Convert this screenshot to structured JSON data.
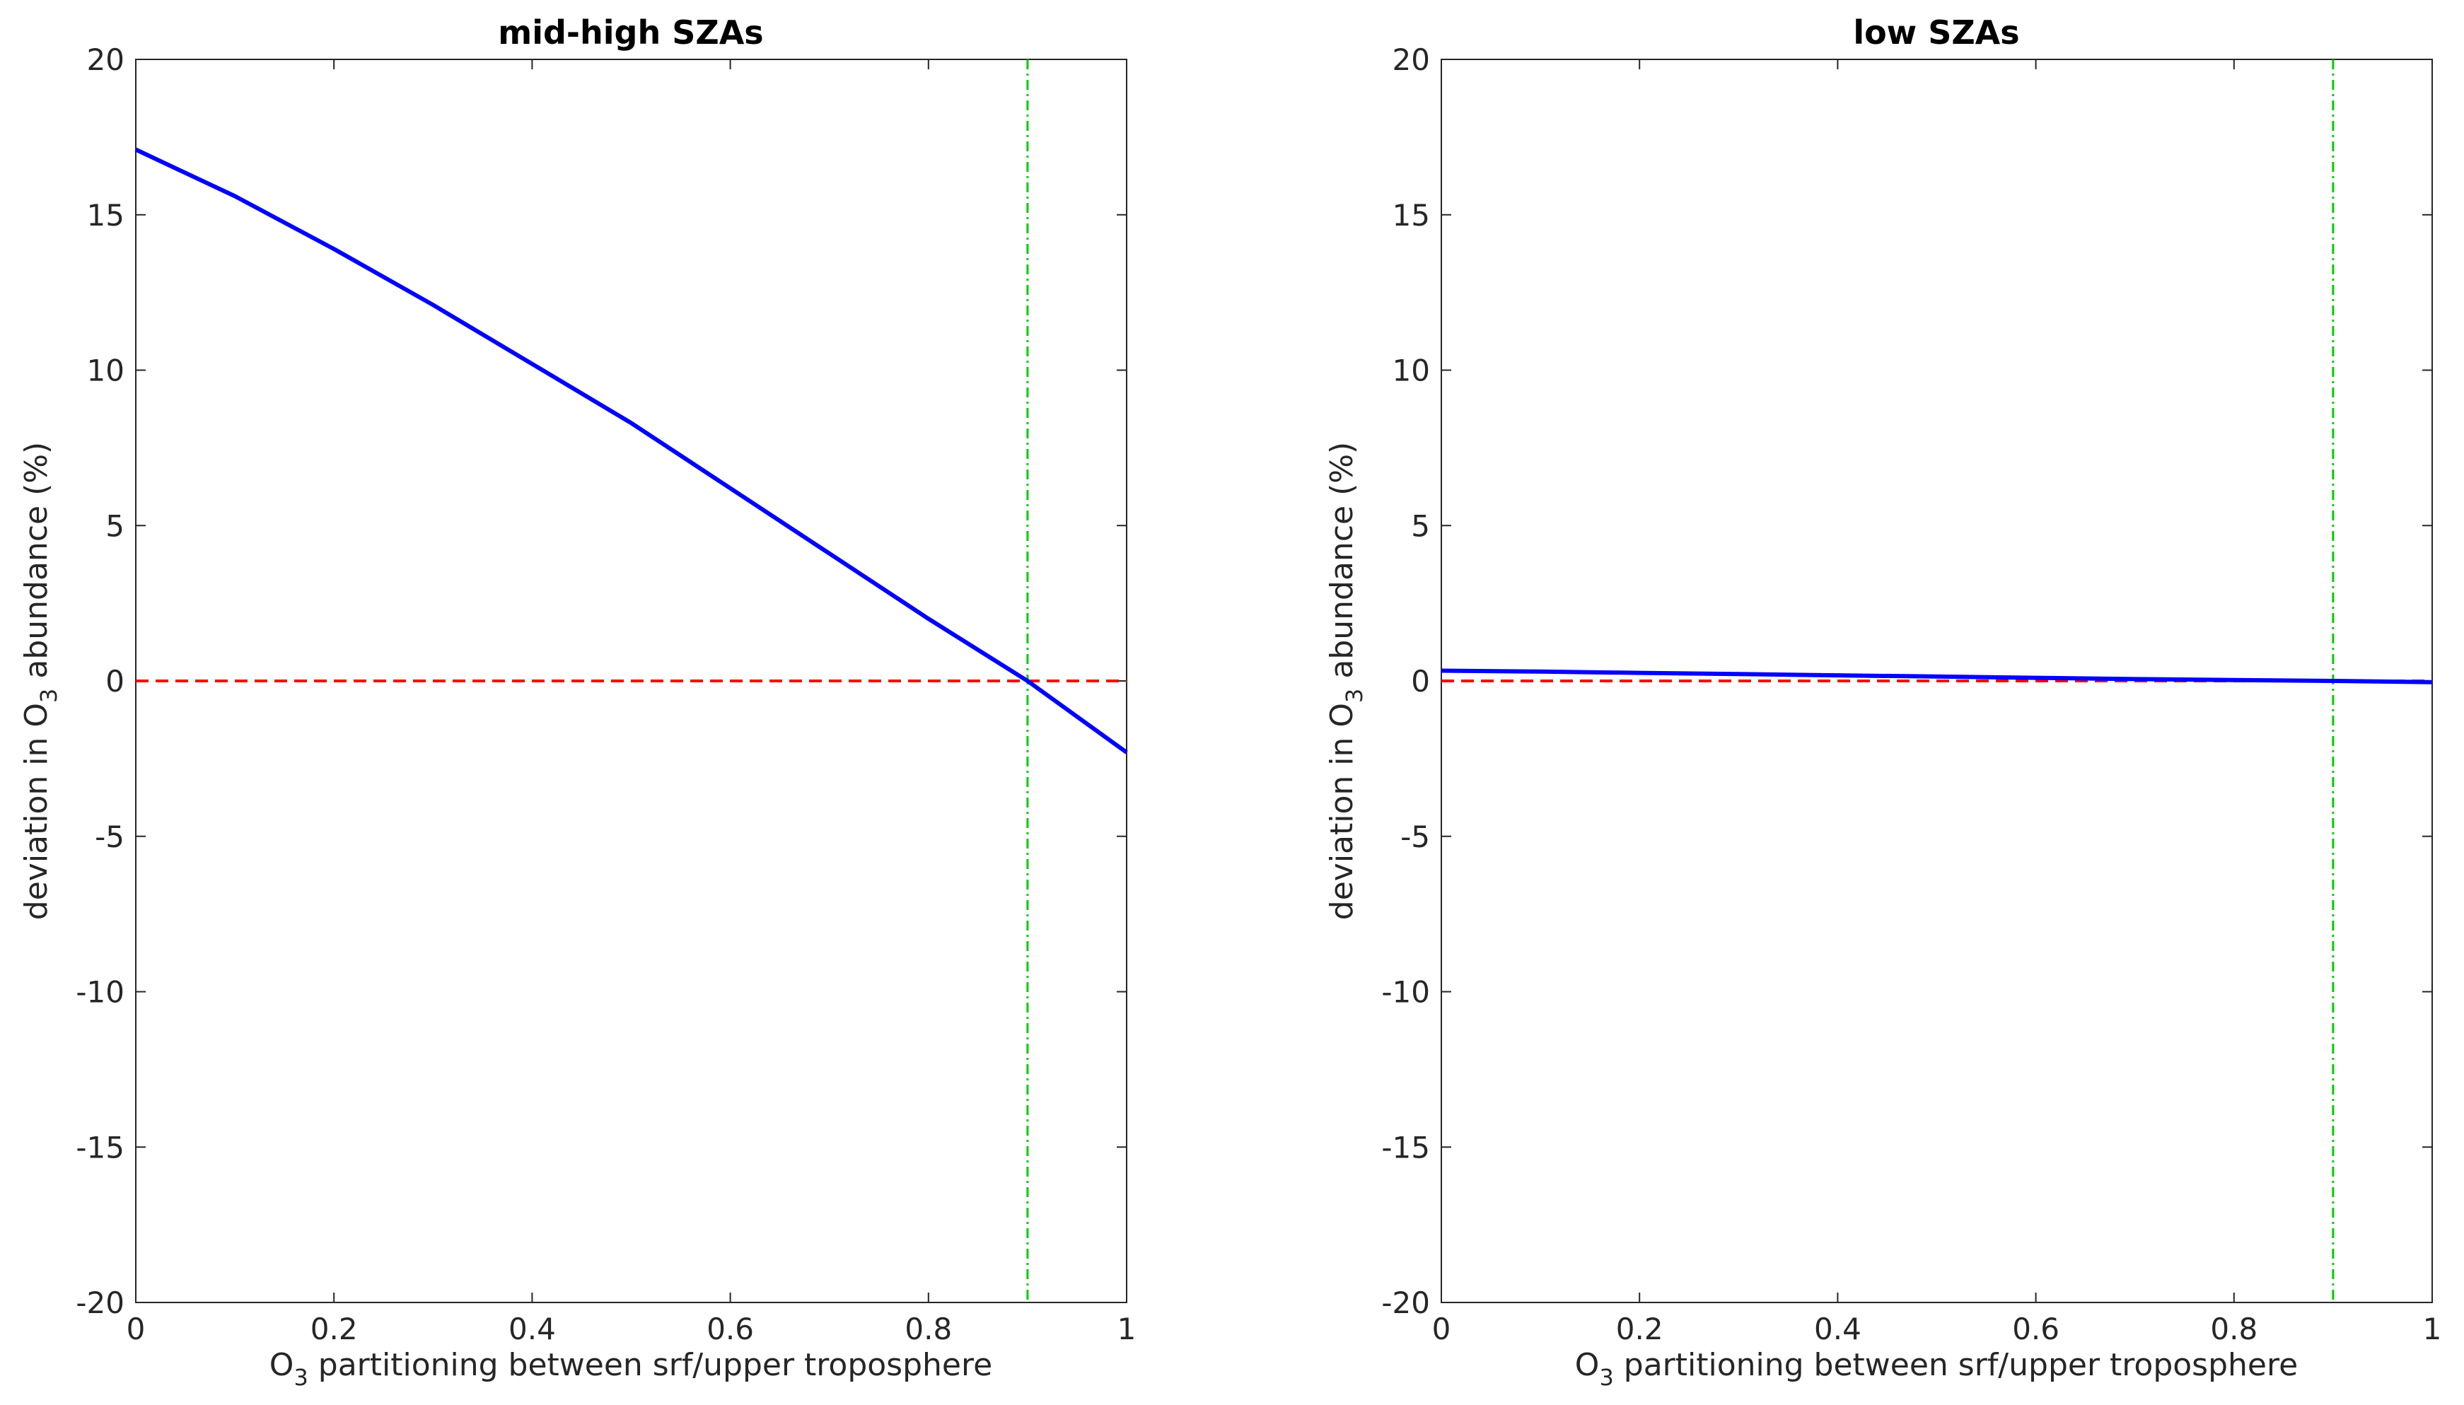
{
  "chart_data": [
    {
      "type": "line",
      "title": "mid-high SZAs",
      "xlabel": {
        "pre": "O",
        "sub": "3",
        "post": " partitioning between srf/upper troposphere"
      },
      "ylabel": {
        "pre": "deviation in O",
        "sub": "3",
        "post": " abundance (%)"
      },
      "xlim": [
        0,
        1
      ],
      "ylim": [
        -20,
        20
      ],
      "xticks": [
        "0",
        "0.2",
        "0.4",
        "0.6",
        "0.8",
        "1"
      ],
      "yticks": [
        "-20",
        "-15",
        "-10",
        "-5",
        "0",
        "5",
        "10",
        "15",
        "20"
      ],
      "grid": false,
      "series": [
        {
          "x": [
            0,
            0.1,
            0.2,
            0.3,
            0.4,
            0.5,
            0.6,
            0.7,
            0.8,
            0.9,
            1.0
          ],
          "y": [
            17.1,
            15.6,
            13.9,
            12.1,
            10.2,
            8.3,
            6.2,
            4.1,
            2.0,
            0.0,
            -2.3
          ],
          "color": "#0000ff",
          "style": "solid"
        }
      ],
      "reference_lines": [
        {
          "orientation": "horizontal",
          "value": 0,
          "color": "#ff0000",
          "style": "dashed"
        },
        {
          "orientation": "vertical",
          "value": 0.9,
          "color": "#00cc00",
          "style": "dash-dot"
        }
      ]
    },
    {
      "type": "line",
      "title": "low SZAs",
      "xlabel": {
        "pre": "O",
        "sub": "3",
        "post": " partitioning between srf/upper troposphere"
      },
      "ylabel": {
        "pre": "deviation in O",
        "sub": "3",
        "post": " abundance (%)"
      },
      "xlim": [
        0,
        1
      ],
      "ylim": [
        -20,
        20
      ],
      "xticks": [
        "0",
        "0.2",
        "0.4",
        "0.6",
        "0.8",
        "1"
      ],
      "yticks": [
        "-20",
        "-15",
        "-10",
        "-5",
        "0",
        "5",
        "10",
        "15",
        "20"
      ],
      "grid": false,
      "series": [
        {
          "x": [
            0,
            0.1,
            0.2,
            0.3,
            0.4,
            0.5,
            0.6,
            0.7,
            0.8,
            0.9,
            1.0
          ],
          "y": [
            0.33,
            0.3,
            0.26,
            0.22,
            0.18,
            0.14,
            0.1,
            0.06,
            0.03,
            0.0,
            -0.04
          ],
          "color": "#0000ff",
          "style": "solid"
        }
      ],
      "reference_lines": [
        {
          "orientation": "horizontal",
          "value": 0,
          "color": "#ff0000",
          "style": "dashed"
        },
        {
          "orientation": "vertical",
          "value": 0.9,
          "color": "#00cc00",
          "style": "dash-dot"
        }
      ]
    }
  ]
}
